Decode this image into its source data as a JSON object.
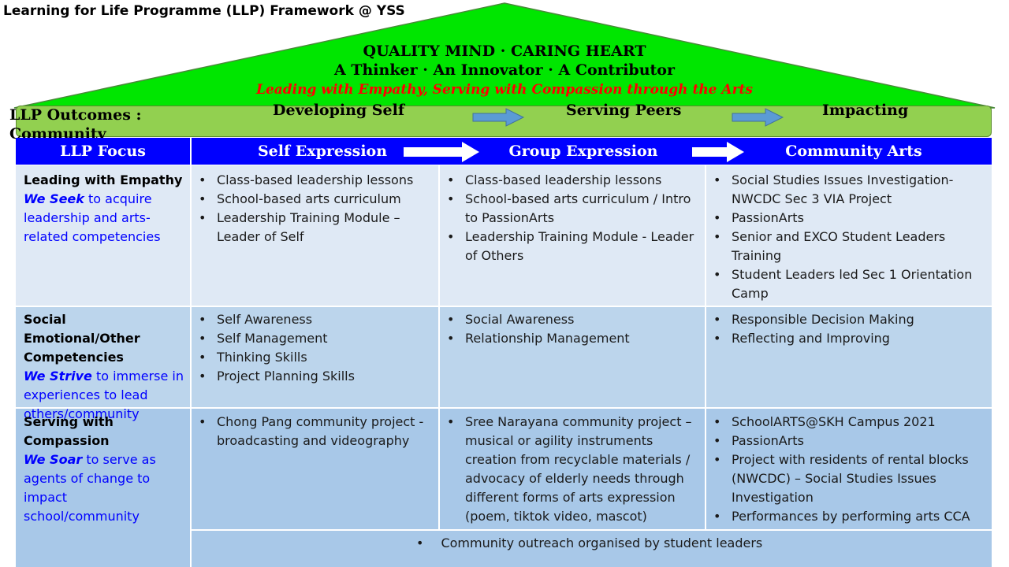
{
  "title": "Learning for Life Programme (LLP) Framework @ YSS",
  "roof": {
    "line1": "QUALITY MIND · CARING HEART",
    "line2": "A Thinker · An Innovator · A Contributor",
    "line3": "Leading with Empathy, Serving with Compassion through the Arts",
    "colors": {
      "roof_fill": "#00e600",
      "outcome_fill": "#92d050",
      "focus_fill": "#0000ff",
      "motto_text": "#ff0000"
    }
  },
  "outcomes": {
    "label": "LLP Outcomes : Community",
    "stages": [
      "Developing Self",
      "Serving Peers",
      "Impacting"
    ]
  },
  "focus_header": {
    "label": "LLP Focus",
    "stages": [
      "Self Expression",
      "Group Expression",
      "Community Arts"
    ]
  },
  "rows": [
    {
      "head": "Leading with Empathy",
      "we": "We Seek",
      "rest": " to acquire leadership and arts-related competencies",
      "cells": [
        [
          "Class-based leadership lessons",
          "School-based arts curriculum",
          "Leadership Training Module – Leader of Self"
        ],
        [
          "Class-based leadership lessons",
          "School-based arts curriculum / Intro to PassionArts",
          "Leadership Training Module - Leader of Others"
        ],
        [
          "Social Studies Issues Investigation- NWCDC Sec 3 VIA Project",
          "PassionArts",
          "Senior and EXCO Student Leaders Training",
          "Student Leaders led Sec 1 Orientation Camp"
        ]
      ]
    },
    {
      "head": "Social Emotional/Other Competencies",
      "we": "We Strive",
      "rest": " to immerse in experiences to lead others/community",
      "cells": [
        [
          "Self Awareness",
          "Self Management",
          "Thinking Skills",
          "Project Planning Skills"
        ],
        [
          "Social Awareness",
          "Relationship Management"
        ],
        [
          "Responsible Decision Making",
          "Reflecting and Improving"
        ]
      ]
    },
    {
      "head": "Serving with Compassion",
      "we": "We Soar",
      "rest": " to serve as agents of change to impact school/community",
      "cells": [
        [
          "Chong Pang community project - broadcasting and videography"
        ],
        [
          "Sree Narayana community project – musical or agility instruments creation from recyclable materials / advocacy of elderly needs through different forms of arts expression (poem, tiktok video, mascot)"
        ],
        [
          "SchoolARTS@SKH Campus 2021",
          "PassionArts",
          "Project with residents of rental blocks (NWCDC) – Social Studies Issues Investigation",
          "Performances by performing arts CCA"
        ]
      ]
    }
  ],
  "footer": "Community outreach organised by student leaders"
}
